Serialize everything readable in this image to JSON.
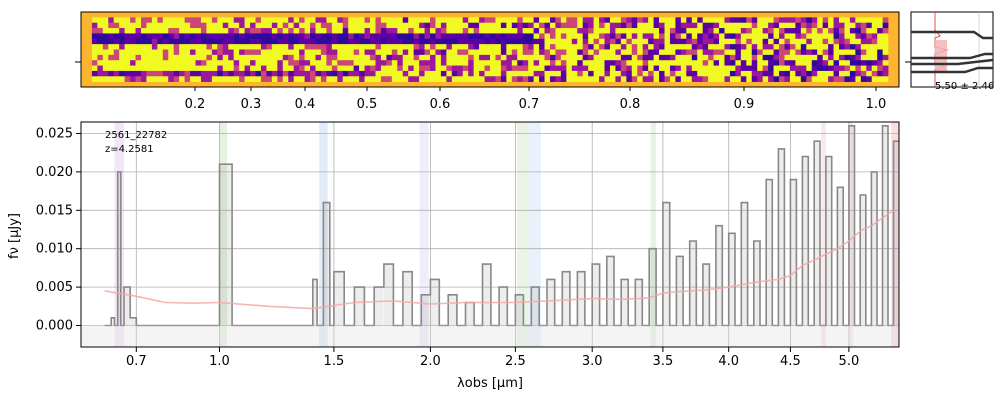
{
  "chart_data": [
    {
      "type": "heatmap",
      "panel": "2D spectrum",
      "colormap": "plasma",
      "top_ticks": [
        "0.2",
        "0.3",
        "0.4",
        "0.5",
        "0.6",
        "0.7",
        "0.8",
        "0.9",
        "1.0"
      ]
    },
    {
      "type": "histogram",
      "panel": "redshift posterior",
      "label": "5.50 ± 2.46"
    },
    {
      "type": "line",
      "panel": "1D spectrum",
      "annotation_id": "2561_22782",
      "annotation_z": "z=4.2581",
      "xlabel": "λobs [μm]",
      "ylabel": "fν [μJy]",
      "xlim": [
        0.53,
        5.45
      ],
      "ylim": [
        -0.0028,
        0.0265
      ],
      "x_ticks": [
        {
          "value": 0.7,
          "label": "0.7"
        },
        {
          "value": 1.0,
          "label": "1.0"
        },
        {
          "value": 1.5,
          "label": "1.5"
        },
        {
          "value": 2.0,
          "label": "2.0"
        },
        {
          "value": 2.5,
          "label": "2.5"
        },
        {
          "value": 3.0,
          "label": "3.0"
        },
        {
          "value": 3.5,
          "label": "3.5"
        },
        {
          "value": 4.0,
          "label": "4.0"
        },
        {
          "value": 4.5,
          "label": "4.5"
        },
        {
          "value": 5.0,
          "label": "5.0"
        }
      ],
      "y_ticks": [
        {
          "value": 0.0,
          "label": "0.000"
        },
        {
          "value": 0.005,
          "label": "0.005"
        },
        {
          "value": 0.01,
          "label": "0.010"
        },
        {
          "value": 0.015,
          "label": "0.015"
        },
        {
          "value": 0.02,
          "label": "0.020"
        },
        {
          "value": 0.025,
          "label": "0.025"
        }
      ],
      "grid": true,
      "bands": [
        {
          "x0": 0.63,
          "x1": 0.66,
          "color": "#dcb8e8"
        },
        {
          "x0": 1.0,
          "x1": 1.03,
          "color": "#b8d8a8"
        },
        {
          "x0": 1.43,
          "x1": 1.47,
          "color": "#a8c8e8"
        },
        {
          "x0": 1.94,
          "x1": 1.99,
          "color": "#d8c8f0"
        },
        {
          "x0": 2.51,
          "x1": 2.58,
          "color": "#c0e0b8"
        },
        {
          "x0": 2.58,
          "x1": 2.66,
          "color": "#c0d8f0"
        },
        {
          "x0": 3.41,
          "x1": 3.45,
          "color": "#b8e0b8"
        },
        {
          "x0": 4.76,
          "x1": 4.8,
          "color": "#f0c0c0"
        },
        {
          "x0": 5.0,
          "x1": 5.04,
          "color": "#f0c8c8"
        },
        {
          "x0": 5.38,
          "x1": 5.45,
          "color": "#f0a0a0"
        }
      ],
      "series": [
        {
          "role": "flux",
          "color": "#888888",
          "x": [
            0.6,
            0.62,
            0.63,
            0.64,
            0.65,
            0.66,
            0.68,
            0.7,
            0.75,
            0.8,
            0.85,
            0.9,
            0.95,
            1.0,
            1.05,
            1.1,
            1.15,
            1.2,
            1.25,
            1.3,
            1.35,
            1.4,
            1.42,
            1.45,
            1.48,
            1.5,
            1.55,
            1.6,
            1.65,
            1.7,
            1.75,
            1.8,
            1.85,
            1.9,
            1.95,
            2.0,
            2.05,
            2.1,
            2.15,
            2.2,
            2.25,
            2.3,
            2.35,
            2.4,
            2.45,
            2.5,
            2.55,
            2.6,
            2.65,
            2.7,
            2.75,
            2.8,
            2.85,
            2.9,
            2.95,
            3.0,
            3.05,
            3.1,
            3.15,
            3.2,
            3.25,
            3.3,
            3.35,
            3.4,
            3.45,
            3.5,
            3.55,
            3.6,
            3.65,
            3.7,
            3.75,
            3.8,
            3.85,
            3.9,
            3.95,
            4.0,
            4.05,
            4.1,
            4.15,
            4.2,
            4.25,
            4.3,
            4.35,
            4.4,
            4.45,
            4.5,
            4.55,
            4.6,
            4.65,
            4.7,
            4.75,
            4.8,
            4.85,
            4.9,
            4.95,
            5.0,
            5.05,
            5.1,
            5.15,
            5.2,
            5.25,
            5.3,
            5.35,
            5.4
          ],
          "y": [
            0.0,
            0.001,
            0.0,
            0.02,
            0.0,
            0.005,
            0.001,
            0.0,
            0.0,
            0.0,
            0.0,
            0.0,
            0.0,
            0.021,
            0.0,
            0.0,
            0.0,
            0.0,
            0.0,
            0.0,
            0.0,
            0.006,
            0.0,
            0.016,
            0.0,
            0.007,
            0.0,
            0.005,
            0.0,
            0.005,
            0.008,
            0.0,
            0.007,
            0.0,
            0.004,
            0.006,
            0.0,
            0.004,
            0.0,
            0.003,
            0.0,
            0.008,
            0.0,
            0.005,
            0.0,
            0.004,
            0.0,
            0.005,
            0.0,
            0.006,
            0.0,
            0.007,
            0.0,
            0.007,
            0.0,
            0.008,
            0.0,
            0.009,
            0.0,
            0.006,
            0.0,
            0.006,
            0.0,
            0.01,
            0.0,
            0.016,
            0.0,
            0.009,
            0.0,
            0.011,
            0.0,
            0.008,
            0.0,
            0.013,
            0.0,
            0.012,
            0.0,
            0.016,
            0.0,
            0.011,
            0.0,
            0.019,
            0.0,
            0.023,
            0.0,
            0.019,
            0.0,
            0.022,
            0.0,
            0.024,
            0.0,
            0.022,
            0.0,
            0.018,
            0.0,
            0.026,
            0.0,
            0.017,
            0.0,
            0.02,
            0.0,
            0.026,
            0.0,
            0.024
          ]
        },
        {
          "role": "uncertainty",
          "color": "#f4a8a8",
          "x": [
            0.6,
            0.7,
            0.8,
            0.9,
            1.0,
            1.2,
            1.4,
            1.6,
            1.8,
            2.0,
            2.2,
            2.5,
            2.8,
            3.0,
            3.2,
            3.4,
            3.5,
            3.6,
            3.8,
            4.0,
            4.2,
            4.4,
            4.5,
            4.6,
            4.7,
            4.8,
            4.9,
            5.0,
            5.1,
            5.2,
            5.3,
            5.4
          ],
          "y": [
            0.0045,
            0.0038,
            0.003,
            0.0029,
            0.003,
            0.0025,
            0.0022,
            0.003,
            0.0032,
            0.0028,
            0.003,
            0.003,
            0.0033,
            0.0035,
            0.0034,
            0.0036,
            0.0042,
            0.0044,
            0.0046,
            0.005,
            0.0056,
            0.006,
            0.0065,
            0.0078,
            0.0085,
            0.0093,
            0.01,
            0.011,
            0.0123,
            0.013,
            0.014,
            0.015
          ]
        }
      ]
    }
  ]
}
